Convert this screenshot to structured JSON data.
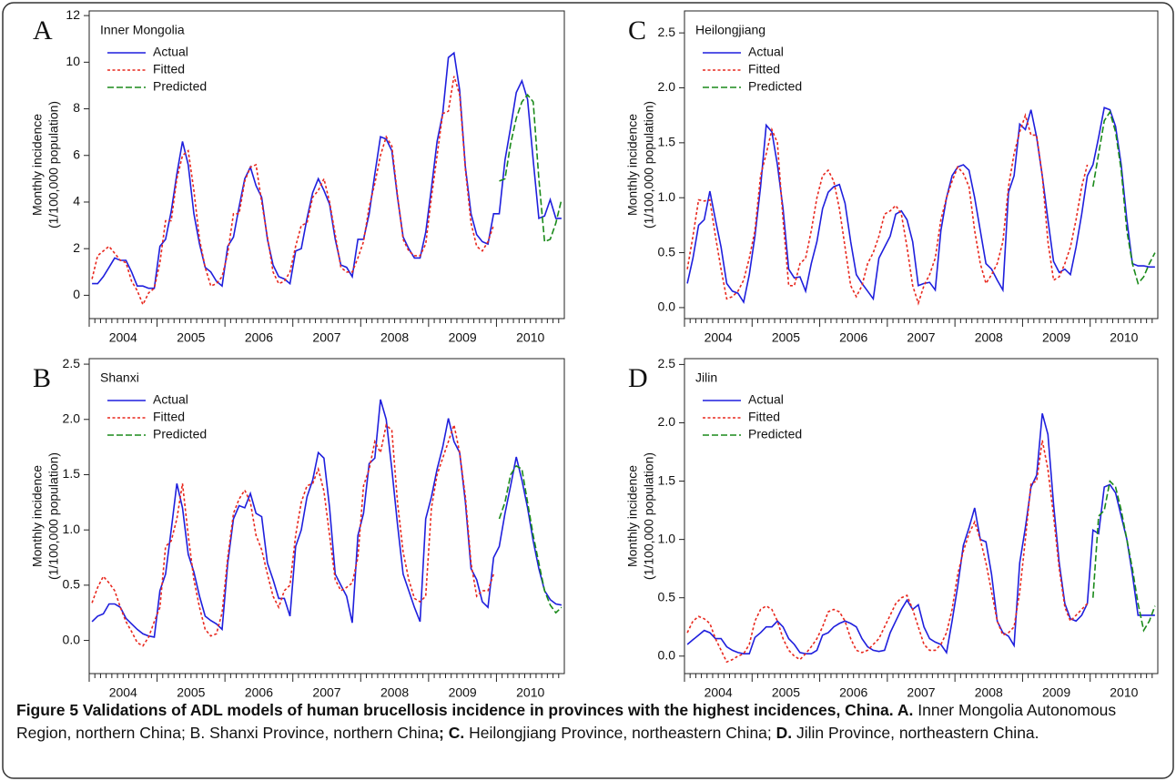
{
  "chart_data": [
    {
      "type": "line",
      "panel_label": "A",
      "title": "Inner Mongolia",
      "ylabel": [
        "Monthly incidence",
        "(1/100,000 population)"
      ],
      "categories": [
        "2004",
        "2005",
        "2006",
        "2007",
        "2008",
        "2009",
        "2010"
      ],
      "ylim": [
        -1,
        12.2
      ],
      "yticks": [
        0,
        2,
        4,
        6,
        8,
        10,
        12
      ],
      "series": [
        {
          "name": "Actual",
          "color": "#1f1fdd",
          "style": "solid",
          "values": [
            [
              0.5,
              0.5,
              0.8,
              1.2,
              1.6,
              1.5,
              1.5,
              1.0,
              0.4,
              0.4,
              0.3,
              0.3
            ],
            [
              2.1,
              2.4,
              3.6,
              5.2,
              6.6,
              5.6,
              3.5,
              2.2,
              1.2,
              1.0,
              0.6,
              0.4
            ],
            [
              2.1,
              2.5,
              3.8,
              5.0,
              5.5,
              4.7,
              4.2,
              2.4,
              1.3,
              0.8,
              0.7,
              0.5
            ],
            [
              1.9,
              2.0,
              3.3,
              4.4,
              5.0,
              4.5,
              3.9,
              2.4,
              1.3,
              1.2,
              0.8,
              2.4
            ],
            [
              2.4,
              3.5,
              5.2,
              6.8,
              6.7,
              6.2,
              4.2,
              2.5,
              2.0,
              1.6,
              1.6,
              2.7
            ],
            [
              4.6,
              6.6,
              7.8,
              10.2,
              10.4,
              8.8,
              5.5,
              3.5,
              2.6,
              2.3,
              2.2,
              3.5
            ],
            [
              3.5,
              5.8,
              7.2,
              8.7,
              9.2,
              8.4,
              5.8,
              3.3,
              3.4,
              4.1,
              3.3,
              3.3
            ]
          ]
        },
        {
          "name": "Fitted",
          "color": "#e8281e",
          "style": "dotted",
          "values": [
            [
              0.7,
              1.7,
              1.9,
              2.1,
              1.8,
              1.5,
              1.4,
              0.6,
              0.2,
              -0.4,
              0.1,
              0.3
            ],
            [
              1.4,
              3.2,
              3.2,
              5.0,
              6.0,
              6.2,
              4.5,
              2.4,
              1.2,
              0.4,
              0.5,
              0.8
            ],
            [
              1.8,
              3.5,
              3.5,
              4.9,
              5.5,
              5.6,
              4.0,
              2.5,
              1.0,
              0.5,
              0.6,
              1.0
            ],
            [
              2.1,
              3.0,
              3.1,
              4.2,
              4.5,
              5.0,
              4.0,
              2.6,
              1.2,
              1.0,
              1.0,
              1.6
            ],
            [
              2.3,
              3.8,
              4.8,
              6.0,
              6.8,
              6.4,
              4.3,
              2.4,
              1.9,
              1.7,
              1.7,
              2.2
            ],
            [
              4.2,
              6.0,
              7.8,
              7.9,
              9.4,
              8.6,
              5.4,
              3.1,
              2.1,
              1.9,
              2.3,
              3.0
            ],
            null
          ]
        },
        {
          "name": "Predicted",
          "color": "#1a8a1a",
          "style": "dashed",
          "values": [
            null,
            null,
            null,
            null,
            null,
            null,
            [
              4.9,
              5.0,
              6.5,
              7.6,
              8.3,
              8.6,
              8.3,
              5.0,
              2.3,
              2.4,
              3.1,
              4.1
            ]
          ]
        }
      ]
    },
    {
      "type": "line",
      "panel_label": "B",
      "title": "Shanxi",
      "ylabel": [
        "Monthly incidence",
        "(1/100,000 population)"
      ],
      "categories": [
        "2004",
        "2005",
        "2006",
        "2007",
        "2008",
        "2009",
        "2010"
      ],
      "ylim": [
        -0.3,
        2.55
      ],
      "yticks": [
        {
          "value": 0,
          "label": "0.0"
        },
        0.5,
        {
          "value": 1,
          "label": "1.0"
        },
        1.5,
        {
          "value": 2,
          "label": "2.0"
        },
        2.5
      ],
      "series": [
        {
          "name": "Actual",
          "color": "#1f1fdd",
          "style": "solid",
          "values": [
            [
              0.17,
              0.22,
              0.24,
              0.33,
              0.33,
              0.3,
              0.2,
              0.15,
              0.1,
              0.06,
              0.04,
              0.03
            ],
            [
              0.45,
              0.6,
              1.0,
              1.42,
              1.2,
              0.78,
              0.62,
              0.4,
              0.22,
              0.18,
              0.15,
              0.1
            ],
            [
              0.7,
              1.1,
              1.22,
              1.2,
              1.33,
              1.15,
              1.12,
              0.7,
              0.55,
              0.38,
              0.38,
              0.22
            ],
            [
              0.85,
              1.0,
              1.3,
              1.45,
              1.7,
              1.65,
              1.2,
              0.6,
              0.5,
              0.4,
              0.16,
              0.95
            ],
            [
              1.15,
              1.6,
              1.65,
              2.18,
              2.0,
              1.55,
              1.05,
              0.6,
              0.45,
              0.3,
              0.17,
              1.1
            ],
            [
              1.3,
              1.55,
              1.75,
              2.01,
              1.8,
              1.7,
              1.25,
              0.65,
              0.55,
              0.35,
              0.3,
              0.75
            ],
            [
              0.85,
              1.15,
              1.4,
              1.66,
              1.45,
              1.2,
              0.9,
              0.65,
              0.45,
              0.37,
              0.33,
              0.32
            ]
          ]
        },
        {
          "name": "Fitted",
          "color": "#e8281e",
          "style": "dotted",
          "values": [
            [
              0.34,
              0.48,
              0.58,
              0.52,
              0.45,
              0.3,
              0.17,
              0.08,
              -0.02,
              -0.05,
              0.03,
              0.17
            ],
            [
              0.3,
              0.85,
              0.9,
              1.1,
              1.42,
              0.95,
              0.55,
              0.3,
              0.1,
              0.04,
              0.06,
              0.25
            ],
            [
              0.75,
              1.15,
              1.28,
              1.36,
              1.25,
              0.95,
              0.82,
              0.6,
              0.4,
              0.3,
              0.45,
              0.5
            ],
            [
              0.95,
              1.25,
              1.4,
              1.42,
              1.55,
              1.35,
              0.95,
              0.55,
              0.45,
              0.48,
              0.52,
              0.75
            ],
            [
              1.4,
              1.55,
              1.8,
              1.7,
              1.95,
              1.9,
              1.25,
              0.8,
              0.55,
              0.38,
              0.35,
              0.4
            ],
            [
              1.2,
              1.5,
              1.65,
              1.8,
              1.95,
              1.7,
              1.3,
              0.7,
              0.4,
              0.45,
              0.45,
              0.6
            ],
            null
          ]
        },
        {
          "name": "Predicted",
          "color": "#1a8a1a",
          "style": "dashed",
          "values": [
            null,
            null,
            null,
            null,
            null,
            null,
            [
              1.1,
              1.25,
              1.5,
              1.58,
              1.55,
              1.25,
              0.95,
              0.7,
              0.45,
              0.32,
              0.25,
              0.3
            ]
          ]
        }
      ]
    },
    {
      "type": "line",
      "panel_label": "C",
      "title": "Heilongjiang",
      "ylabel": [
        "Monthly incidence",
        "(1/100,000 population)"
      ],
      "categories": [
        "2004",
        "2005",
        "2006",
        "2007",
        "2008",
        "2009",
        "2010"
      ],
      "ylim": [
        -0.1,
        2.7
      ],
      "yticks": [
        {
          "value": 0,
          "label": "0.0"
        },
        0.5,
        {
          "value": 1,
          "label": "1.0"
        },
        1.5,
        {
          "value": 2,
          "label": "2.0"
        },
        2.5
      ],
      "series": [
        {
          "name": "Actual",
          "color": "#1f1fdd",
          "style": "solid",
          "values": [
            [
              0.22,
              0.45,
              0.75,
              0.8,
              1.06,
              0.8,
              0.55,
              0.22,
              0.15,
              0.13,
              0.05,
              0.3
            ],
            [
              0.65,
              1.1,
              1.66,
              1.6,
              1.3,
              0.9,
              0.35,
              0.27,
              0.28,
              0.15,
              0.4,
              0.6
            ],
            [
              0.9,
              1.05,
              1.1,
              1.12,
              0.95,
              0.6,
              0.3,
              0.22,
              0.15,
              0.08,
              0.45,
              0.55
            ],
            [
              0.65,
              0.85,
              0.88,
              0.8,
              0.6,
              0.2,
              0.22,
              0.23,
              0.16,
              0.7,
              1.0,
              1.2
            ],
            [
              1.28,
              1.3,
              1.25,
              1.0,
              0.7,
              0.4,
              0.35,
              0.25,
              0.16,
              1.05,
              1.2,
              1.67
            ],
            [
              1.62,
              1.8,
              1.55,
              1.2,
              0.8,
              0.42,
              0.32,
              0.35,
              0.3,
              0.55,
              0.85,
              1.2
            ],
            [
              1.3,
              1.55,
              1.82,
              1.8,
              1.65,
              1.3,
              0.8,
              0.4,
              0.38,
              0.38,
              0.37,
              0.37
            ]
          ]
        },
        {
          "name": "Fitted",
          "color": "#e8281e",
          "style": "dotted",
          "values": [
            [
              0.35,
              0.65,
              0.98,
              0.97,
              0.98,
              0.65,
              0.35,
              0.08,
              0.1,
              0.15,
              0.25,
              0.45
            ],
            [
              0.7,
              1.2,
              1.4,
              1.62,
              1.5,
              0.8,
              0.2,
              0.2,
              0.4,
              0.45,
              0.7,
              1.0
            ],
            [
              1.2,
              1.25,
              1.15,
              0.9,
              0.55,
              0.2,
              0.1,
              0.2,
              0.4,
              0.5,
              0.65,
              0.85
            ],
            [
              0.88,
              0.93,
              0.85,
              0.55,
              0.2,
              0.04,
              0.2,
              0.3,
              0.45,
              0.8,
              1.0,
              1.15
            ],
            [
              1.28,
              1.22,
              1.1,
              0.7,
              0.4,
              0.22,
              0.3,
              0.4,
              0.6,
              1.1,
              1.4,
              1.6
            ],
            [
              1.75,
              1.57,
              1.57,
              1.2,
              0.6,
              0.25,
              0.28,
              0.4,
              0.55,
              0.8,
              1.1,
              1.3
            ],
            null
          ]
        },
        {
          "name": "Predicted",
          "color": "#1a8a1a",
          "style": "dashed",
          "values": [
            null,
            null,
            null,
            null,
            null,
            null,
            [
              1.1,
              1.4,
              1.7,
              1.78,
              1.6,
              1.25,
              0.7,
              0.4,
              0.22,
              0.28,
              0.4,
              0.5
            ]
          ]
        }
      ]
    },
    {
      "type": "line",
      "panel_label": "D",
      "title": "Jilin",
      "ylabel": [
        "Monthly incidence",
        "(1/100,000 population)"
      ],
      "categories": [
        "2004",
        "2005",
        "2006",
        "2007",
        "2008",
        "2009",
        "2010"
      ],
      "ylim": [
        -0.15,
        2.55
      ],
      "yticks": [
        {
          "value": 0,
          "label": "0.0"
        },
        0.5,
        {
          "value": 1,
          "label": "1.0"
        },
        1.5,
        {
          "value": 2,
          "label": "2.0"
        },
        2.5
      ],
      "series": [
        {
          "name": "Actual",
          "color": "#1f1fdd",
          "style": "solid",
          "values": [
            [
              0.1,
              0.14,
              0.18,
              0.22,
              0.2,
              0.15,
              0.15,
              0.08,
              0.05,
              0.03,
              0.02,
              0.02
            ],
            [
              0.16,
              0.2,
              0.25,
              0.25,
              0.3,
              0.25,
              0.15,
              0.1,
              0.03,
              0.02,
              0.02,
              0.05
            ],
            [
              0.18,
              0.2,
              0.25,
              0.28,
              0.3,
              0.28,
              0.25,
              0.15,
              0.08,
              0.05,
              0.04,
              0.05
            ],
            [
              0.2,
              0.3,
              0.4,
              0.48,
              0.4,
              0.44,
              0.25,
              0.15,
              0.12,
              0.1,
              0.03,
              0.3
            ],
            [
              0.6,
              0.95,
              1.1,
              1.27,
              1.0,
              0.98,
              0.7,
              0.3,
              0.2,
              0.17,
              0.09,
              0.8
            ],
            [
              1.1,
              1.45,
              1.55,
              2.08,
              1.9,
              1.3,
              0.8,
              0.45,
              0.32,
              0.3,
              0.35,
              0.45
            ],
            [
              1.08,
              1.05,
              1.45,
              1.47,
              1.4,
              1.2,
              1.0,
              0.7,
              0.35,
              0.35,
              0.35,
              0.35
            ]
          ]
        },
        {
          "name": "Fitted",
          "color": "#e8281e",
          "style": "dotted",
          "values": [
            [
              0.2,
              0.3,
              0.34,
              0.32,
              0.28,
              0.15,
              0.05,
              -0.05,
              -0.03,
              0.0,
              0.02,
              0.1
            ],
            [
              0.3,
              0.4,
              0.43,
              0.4,
              0.3,
              0.15,
              0.05,
              0.0,
              -0.03,
              0.02,
              0.08,
              0.15
            ],
            [
              0.25,
              0.38,
              0.4,
              0.38,
              0.3,
              0.15,
              0.05,
              0.03,
              0.05,
              0.1,
              0.15,
              0.25
            ],
            [
              0.35,
              0.45,
              0.5,
              0.52,
              0.4,
              0.25,
              0.1,
              0.05,
              0.05,
              0.1,
              0.2,
              0.4
            ],
            [
              0.7,
              0.9,
              1.05,
              1.15,
              1.0,
              0.8,
              0.55,
              0.3,
              0.18,
              0.2,
              0.25,
              0.55
            ],
            [
              1.0,
              1.48,
              1.5,
              1.85,
              1.6,
              1.2,
              0.75,
              0.42,
              0.3,
              0.35,
              0.4,
              0.45
            ],
            null
          ]
        },
        {
          "name": "Predicted",
          "color": "#1a8a1a",
          "style": "dashed",
          "values": [
            null,
            null,
            null,
            null,
            null,
            null,
            [
              0.5,
              1.2,
              1.25,
              1.5,
              1.45,
              1.25,
              1.0,
              0.75,
              0.45,
              0.22,
              0.3,
              0.43
            ]
          ]
        }
      ]
    }
  ],
  "caption": [
    {
      "text": "Figure 5 Validations of ADL models of human brucellosis incidence in provinces with the highest incidences, China. A.",
      "bold": true
    },
    {
      "text": " Inner Mongolia Autonomous Region, northern China; B. Shanxi Province, northern China",
      "bold": false
    },
    {
      "text": "; C.",
      "bold": true
    },
    {
      "text": " Heilongjiang Province, northeastern China; ",
      "bold": false
    },
    {
      "text": "D.",
      "bold": true
    },
    {
      "text": " Jilin Province, northeastern China.",
      "bold": false
    }
  ]
}
